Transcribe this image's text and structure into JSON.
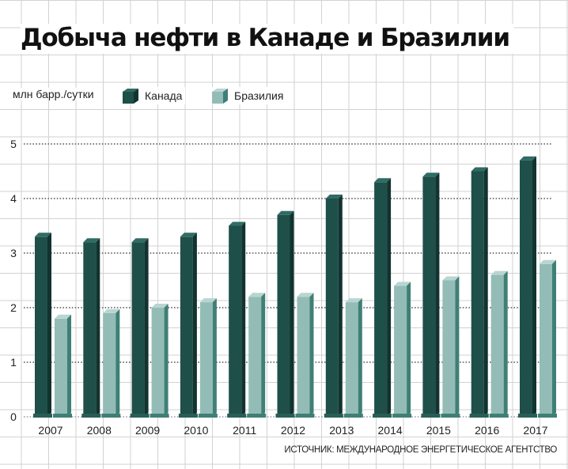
{
  "chart_data": {
    "type": "bar",
    "title": "Добыча нефти в Канаде и Бразилии",
    "ylabel": "млн барр./сутки",
    "xlabel": "",
    "ylim": [
      0,
      5
    ],
    "yticks": [
      "0",
      "1",
      "2",
      "3",
      "4",
      "5"
    ],
    "grid": true,
    "legend_position": "top-left",
    "categories": [
      "2007",
      "2008",
      "2009",
      "2010",
      "2011",
      "2012",
      "2013",
      "2014",
      "2015",
      "2016",
      "2017"
    ],
    "series": [
      {
        "name": "Канада",
        "color": "#1f4f49",
        "values": [
          3.3,
          3.2,
          3.2,
          3.3,
          3.5,
          3.7,
          4.0,
          4.3,
          4.4,
          4.5,
          4.7
        ]
      },
      {
        "name": "Бразилия",
        "color": "#93bcb6",
        "values": [
          1.8,
          1.9,
          2.0,
          2.1,
          2.2,
          2.2,
          2.1,
          2.4,
          2.5,
          2.6,
          2.8
        ]
      }
    ],
    "source": "ИСТОЧНИК: МЕЖДУНАРОДНОЕ ЭНЕРГЕТИЧЕСКОЕ АГЕНТСТВО"
  }
}
